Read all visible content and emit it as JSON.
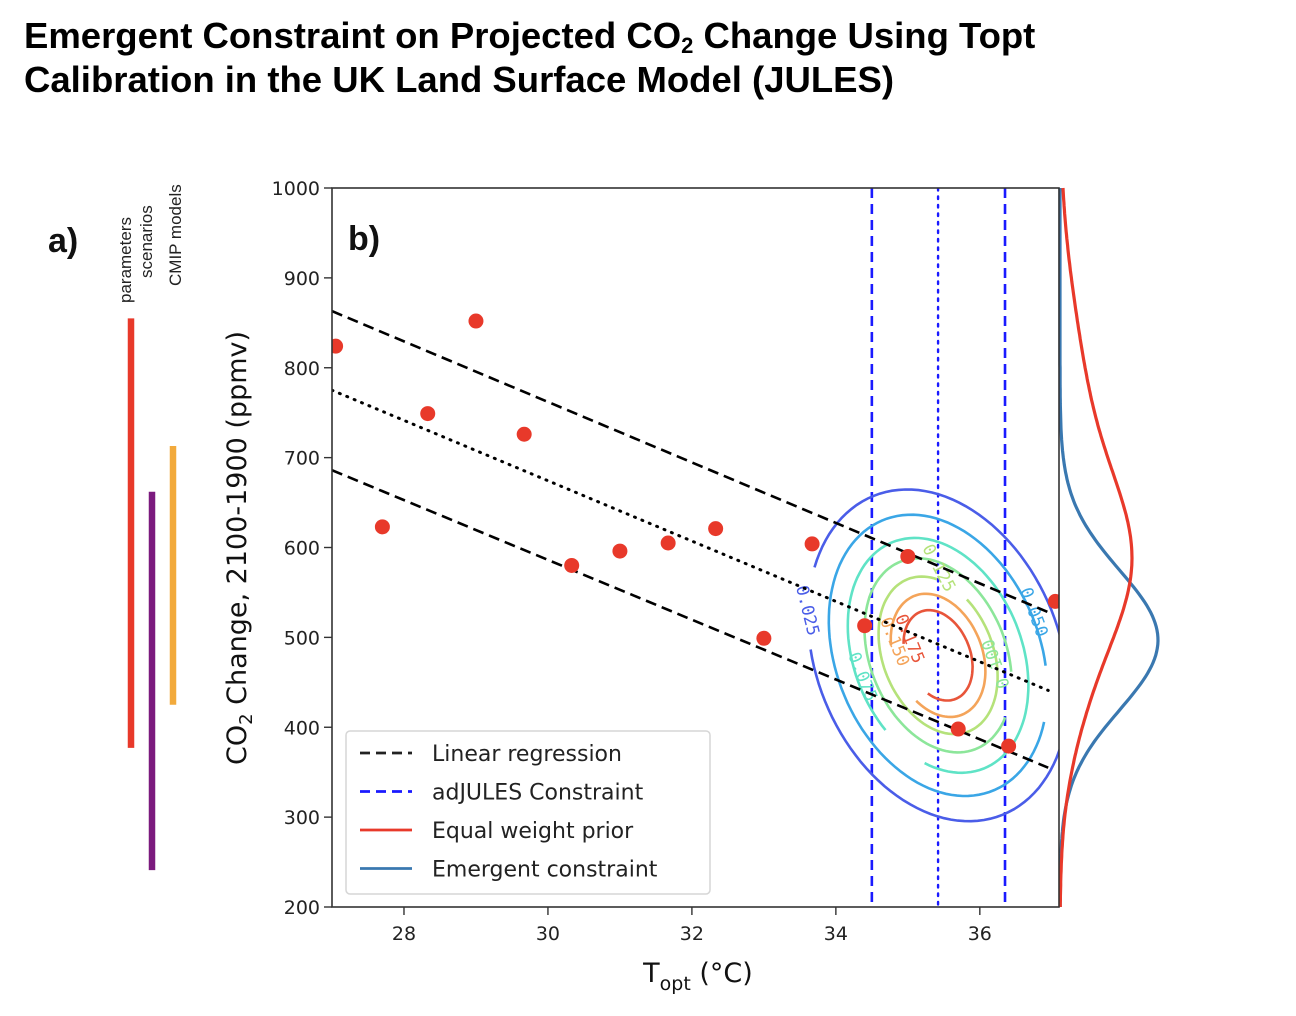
{
  "title": {
    "line1_parts": [
      "Emergent Constraint on Projected CO",
      "2",
      " Change Using Topt"
    ],
    "line2": "Calibration in the UK Land Surface Model (JULES)"
  },
  "chart_data": [
    {
      "id": "panel-a",
      "type": "range-bars",
      "panel_label": "a)",
      "ylim": [
        200,
        1000
      ],
      "bars": [
        {
          "name": "parameters",
          "low": 377,
          "high": 855,
          "color": "#e8392a"
        },
        {
          "name": "scenarios",
          "low": 241,
          "high": 662,
          "color": "#7b1a7e"
        },
        {
          "name": "CMIP models",
          "low": 425,
          "high": 713,
          "color": "#f2aa3c"
        }
      ]
    },
    {
      "id": "panel-b",
      "type": "scatter",
      "panel_label": "b)",
      "xlabel_main": "T",
      "xlabel_sub": "opt",
      "xlabel_unit": " (°C)",
      "ylabel_prefix": "CO",
      "ylabel_sub": "2",
      "ylabel_suffix": " Change, 2100-1900 (ppmv)",
      "xlim": [
        27.0,
        37.1
      ],
      "ylim": [
        200,
        1000
      ],
      "xticks": [
        28,
        30,
        32,
        34,
        36
      ],
      "yticks": [
        200,
        300,
        400,
        500,
        600,
        700,
        800,
        900,
        1000
      ],
      "grid": false,
      "points": {
        "color": "#e8392a",
        "x": [
          27.05,
          27.7,
          28.33,
          29.0,
          29.67,
          30.33,
          31.0,
          31.67,
          32.33,
          33.0,
          33.67,
          34.4,
          35.0,
          35.7,
          36.4,
          37.05
        ],
        "y": [
          824,
          623,
          749,
          852,
          726,
          580,
          596,
          605,
          621,
          499,
          604,
          513,
          590,
          398,
          379,
          540
        ]
      },
      "regression": {
        "color": "#000000",
        "upper": {
          "x": [
            27.0,
            36.95
          ],
          "y": [
            863,
            528
          ],
          "style": "dashed"
        },
        "center": {
          "x": [
            27.0,
            36.95
          ],
          "y": [
            775,
            441
          ],
          "style": "dotted"
        },
        "lower": {
          "x": [
            27.0,
            36.95
          ],
          "y": [
            686,
            355
          ],
          "style": "dashed"
        }
      },
      "adjules_constraint": {
        "color": "#1a1aff",
        "lower": 34.5,
        "mean": 35.42,
        "upper": 36.35
      },
      "contours": {
        "center": [
          35.42,
          480
        ],
        "levels": [
          {
            "value": 0.025,
            "label": "0.025",
            "color": "#4a5de8"
          },
          {
            "value": 0.05,
            "label": "0.050",
            "color": "#3aa6e6"
          },
          {
            "value": 0.075,
            "label": "0.075",
            "color": "#5fe3c6"
          },
          {
            "value": 0.1,
            "label": "0.100",
            "color": "#8ce69a"
          },
          {
            "value": 0.125,
            "label": "0.125",
            "color": "#b5e27a"
          },
          {
            "value": 0.15,
            "label": "0.150",
            "color": "#f4a45a"
          },
          {
            "value": 0.175,
            "label": "0.175",
            "color": "#e8553a"
          }
        ]
      },
      "marginal_pdfs": {
        "equal_weight_prior": {
          "color": "#e8392a",
          "mode": 580
        },
        "emergent_constraint": {
          "color": "#3a78b0",
          "mode": 497
        }
      },
      "legend": {
        "position": "lower-left",
        "entries": [
          {
            "label": "Linear regression",
            "color": "#222222",
            "style": "dashed"
          },
          {
            "label": "adJULES Constraint",
            "color": "#1a1aff",
            "style": "dashed"
          },
          {
            "label": "Equal weight prior",
            "color": "#e8392a",
            "style": "solid"
          },
          {
            "label": "Emergent constraint",
            "color": "#3a78b0",
            "style": "solid"
          }
        ]
      }
    }
  ]
}
